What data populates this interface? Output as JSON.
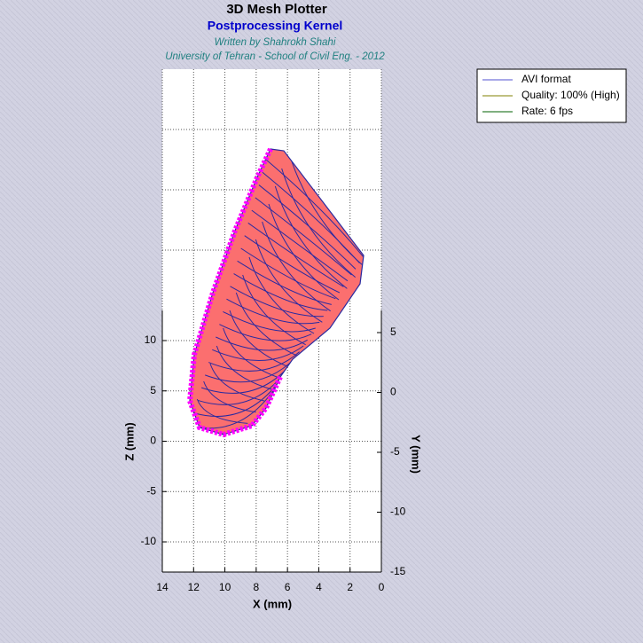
{
  "header": {
    "title": "3D Mesh Plotter",
    "subtitle": "Postprocessing Kernel",
    "author": "Written by Shahrokh Shahi",
    "affiliation": "University of Tehran - School of Civil Eng. - 2012"
  },
  "legend": [
    "AVI format",
    "Quality: 100% (High)",
    "Rate: 6 fps"
  ],
  "axes": {
    "x": {
      "label": "X (mm)",
      "ticks": [
        "14",
        "12",
        "10",
        "8",
        "6",
        "4",
        "2",
        "0"
      ]
    },
    "z": {
      "label": "Z (mm)",
      "ticks": [
        "10",
        "5",
        "0",
        "-5",
        "-10"
      ]
    },
    "y": {
      "label": "Y (mm)",
      "ticks": [
        "5",
        "0",
        "-5",
        "-10",
        "-15"
      ]
    }
  }
}
